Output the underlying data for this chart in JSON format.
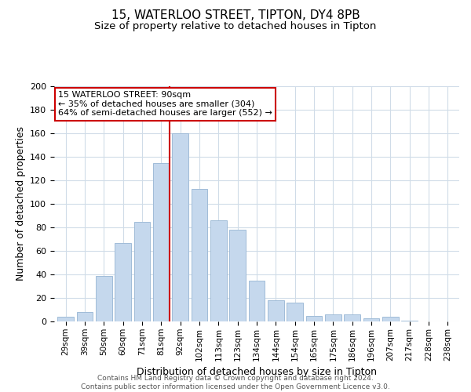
{
  "title": "15, WATERLOO STREET, TIPTON, DY4 8PB",
  "subtitle": "Size of property relative to detached houses in Tipton",
  "xlabel": "Distribution of detached houses by size in Tipton",
  "ylabel": "Number of detached properties",
  "bar_labels": [
    "29sqm",
    "39sqm",
    "50sqm",
    "60sqm",
    "71sqm",
    "81sqm",
    "92sqm",
    "102sqm",
    "113sqm",
    "123sqm",
    "134sqm",
    "144sqm",
    "154sqm",
    "165sqm",
    "175sqm",
    "186sqm",
    "196sqm",
    "207sqm",
    "217sqm",
    "228sqm",
    "238sqm"
  ],
  "bar_values": [
    4,
    8,
    39,
    67,
    85,
    135,
    160,
    113,
    86,
    78,
    35,
    18,
    16,
    5,
    6,
    6,
    3,
    4,
    1,
    0,
    0
  ],
  "bar_color": "#c5d8ed",
  "bar_edge_color": "#a0bcd8",
  "vline_color": "#cc0000",
  "annotation_text_line1": "15 WATERLOO STREET: 90sqm",
  "annotation_text_line2": "← 35% of detached houses are smaller (304)",
  "annotation_text_line3": "64% of semi-detached houses are larger (552) →",
  "annotation_box_color": "#ffffff",
  "annotation_box_edge": "#cc0000",
  "ylim": [
    0,
    200
  ],
  "yticks": [
    0,
    20,
    40,
    60,
    80,
    100,
    120,
    140,
    160,
    180,
    200
  ],
  "footer_line1": "Contains HM Land Registry data © Crown copyright and database right 2024.",
  "footer_line2": "Contains public sector information licensed under the Open Government Licence v3.0.",
  "background_color": "#ffffff",
  "grid_color": "#d0dce8"
}
